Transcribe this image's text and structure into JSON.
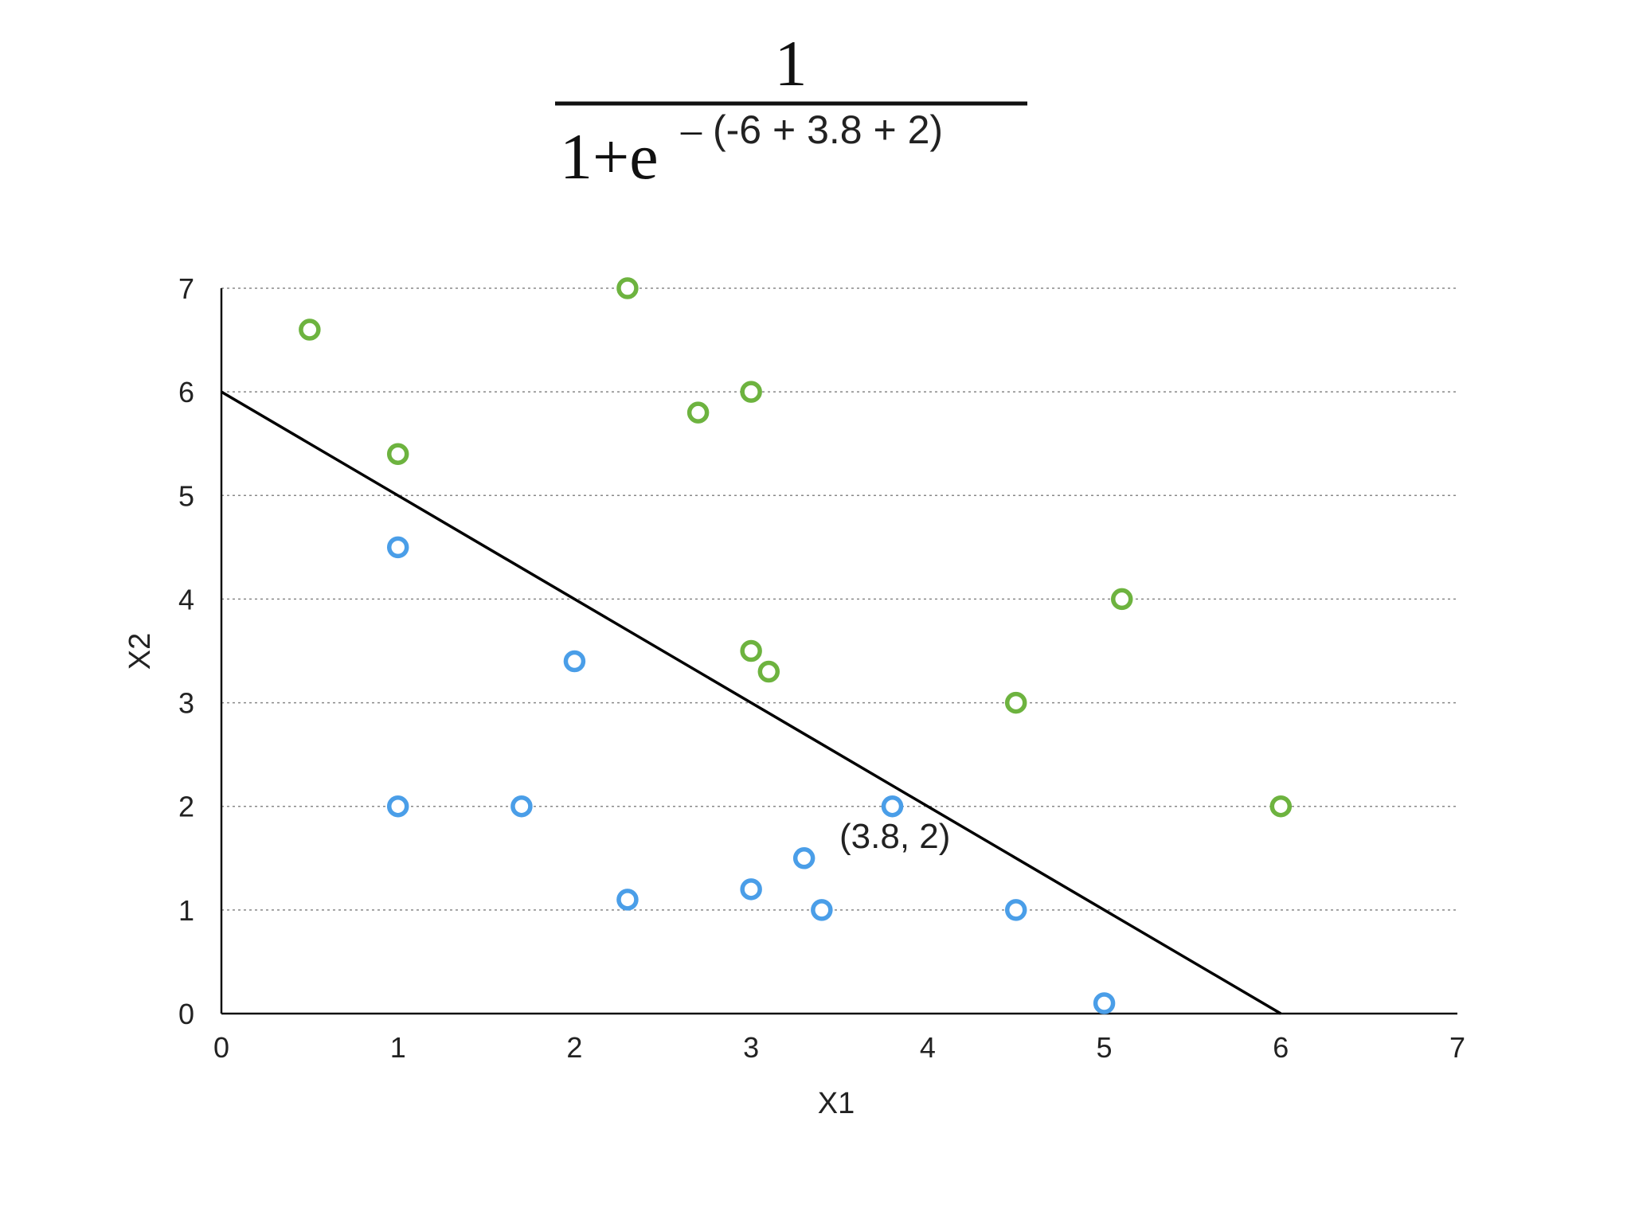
{
  "formula": {
    "numerator": "1",
    "denominator_base": "1+e",
    "exponent_sign": "–",
    "exponent": "(-6 + 3.8 + 2)"
  },
  "chart_data": {
    "type": "scatter",
    "xlabel": "X1",
    "ylabel": "X2",
    "xlim": [
      0,
      7
    ],
    "ylim": [
      0,
      7
    ],
    "x_ticks": [
      "0",
      "1",
      "2",
      "3",
      "4",
      "5",
      "6",
      "7"
    ],
    "y_ticks": [
      "0",
      "1",
      "2",
      "3",
      "4",
      "5",
      "6",
      "7"
    ],
    "grid": "horizontal dotted",
    "series": [
      {
        "color": "#6db33f",
        "points": [
          [
            0.5,
            6.6
          ],
          [
            1.0,
            5.4
          ],
          [
            2.3,
            7.0
          ],
          [
            2.7,
            5.8
          ],
          [
            3.0,
            6.0
          ],
          [
            3.0,
            3.5
          ],
          [
            3.1,
            3.3
          ],
          [
            4.5,
            3.0
          ],
          [
            5.1,
            4.0
          ],
          [
            6.0,
            2.0
          ]
        ]
      },
      {
        "color": "#4a9ee8",
        "points": [
          [
            1.0,
            4.5
          ],
          [
            1.0,
            2.0
          ],
          [
            1.7,
            2.0
          ],
          [
            2.0,
            3.4
          ],
          [
            2.3,
            1.1
          ],
          [
            3.0,
            1.2
          ],
          [
            3.3,
            1.5
          ],
          [
            3.4,
            1.0
          ],
          [
            3.8,
            2.0
          ],
          [
            4.5,
            1.0
          ],
          [
            5.0,
            0.1
          ]
        ]
      }
    ],
    "lines": [
      {
        "from": [
          0,
          6
        ],
        "to": [
          6,
          0
        ],
        "color": "#000000"
      }
    ],
    "annotations": [
      {
        "text": "(3.8, 2)",
        "x": 3.5,
        "y": 1.6
      }
    ]
  }
}
